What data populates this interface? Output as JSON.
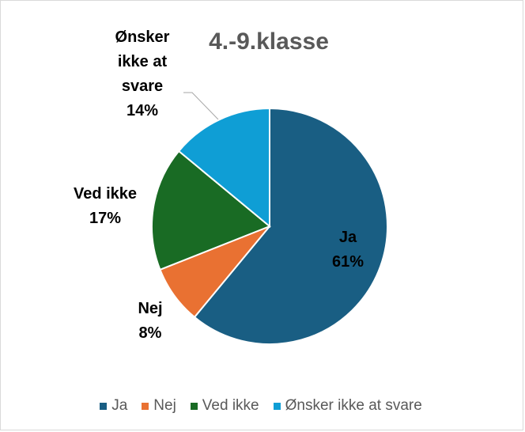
{
  "chart_data": {
    "type": "pie",
    "title": "4.-9.klasse",
    "categories": [
      "Ja",
      "Nej",
      "Ved ikke",
      "Ønsker ikke at svare"
    ],
    "values": [
      61,
      8,
      17,
      14
    ],
    "value_labels": [
      "61%",
      "8%",
      "17%",
      "14%"
    ],
    "colors": [
      "#195e83",
      "#e97132",
      "#196b24",
      "#0f9ed5"
    ],
    "legend": "bottom"
  }
}
